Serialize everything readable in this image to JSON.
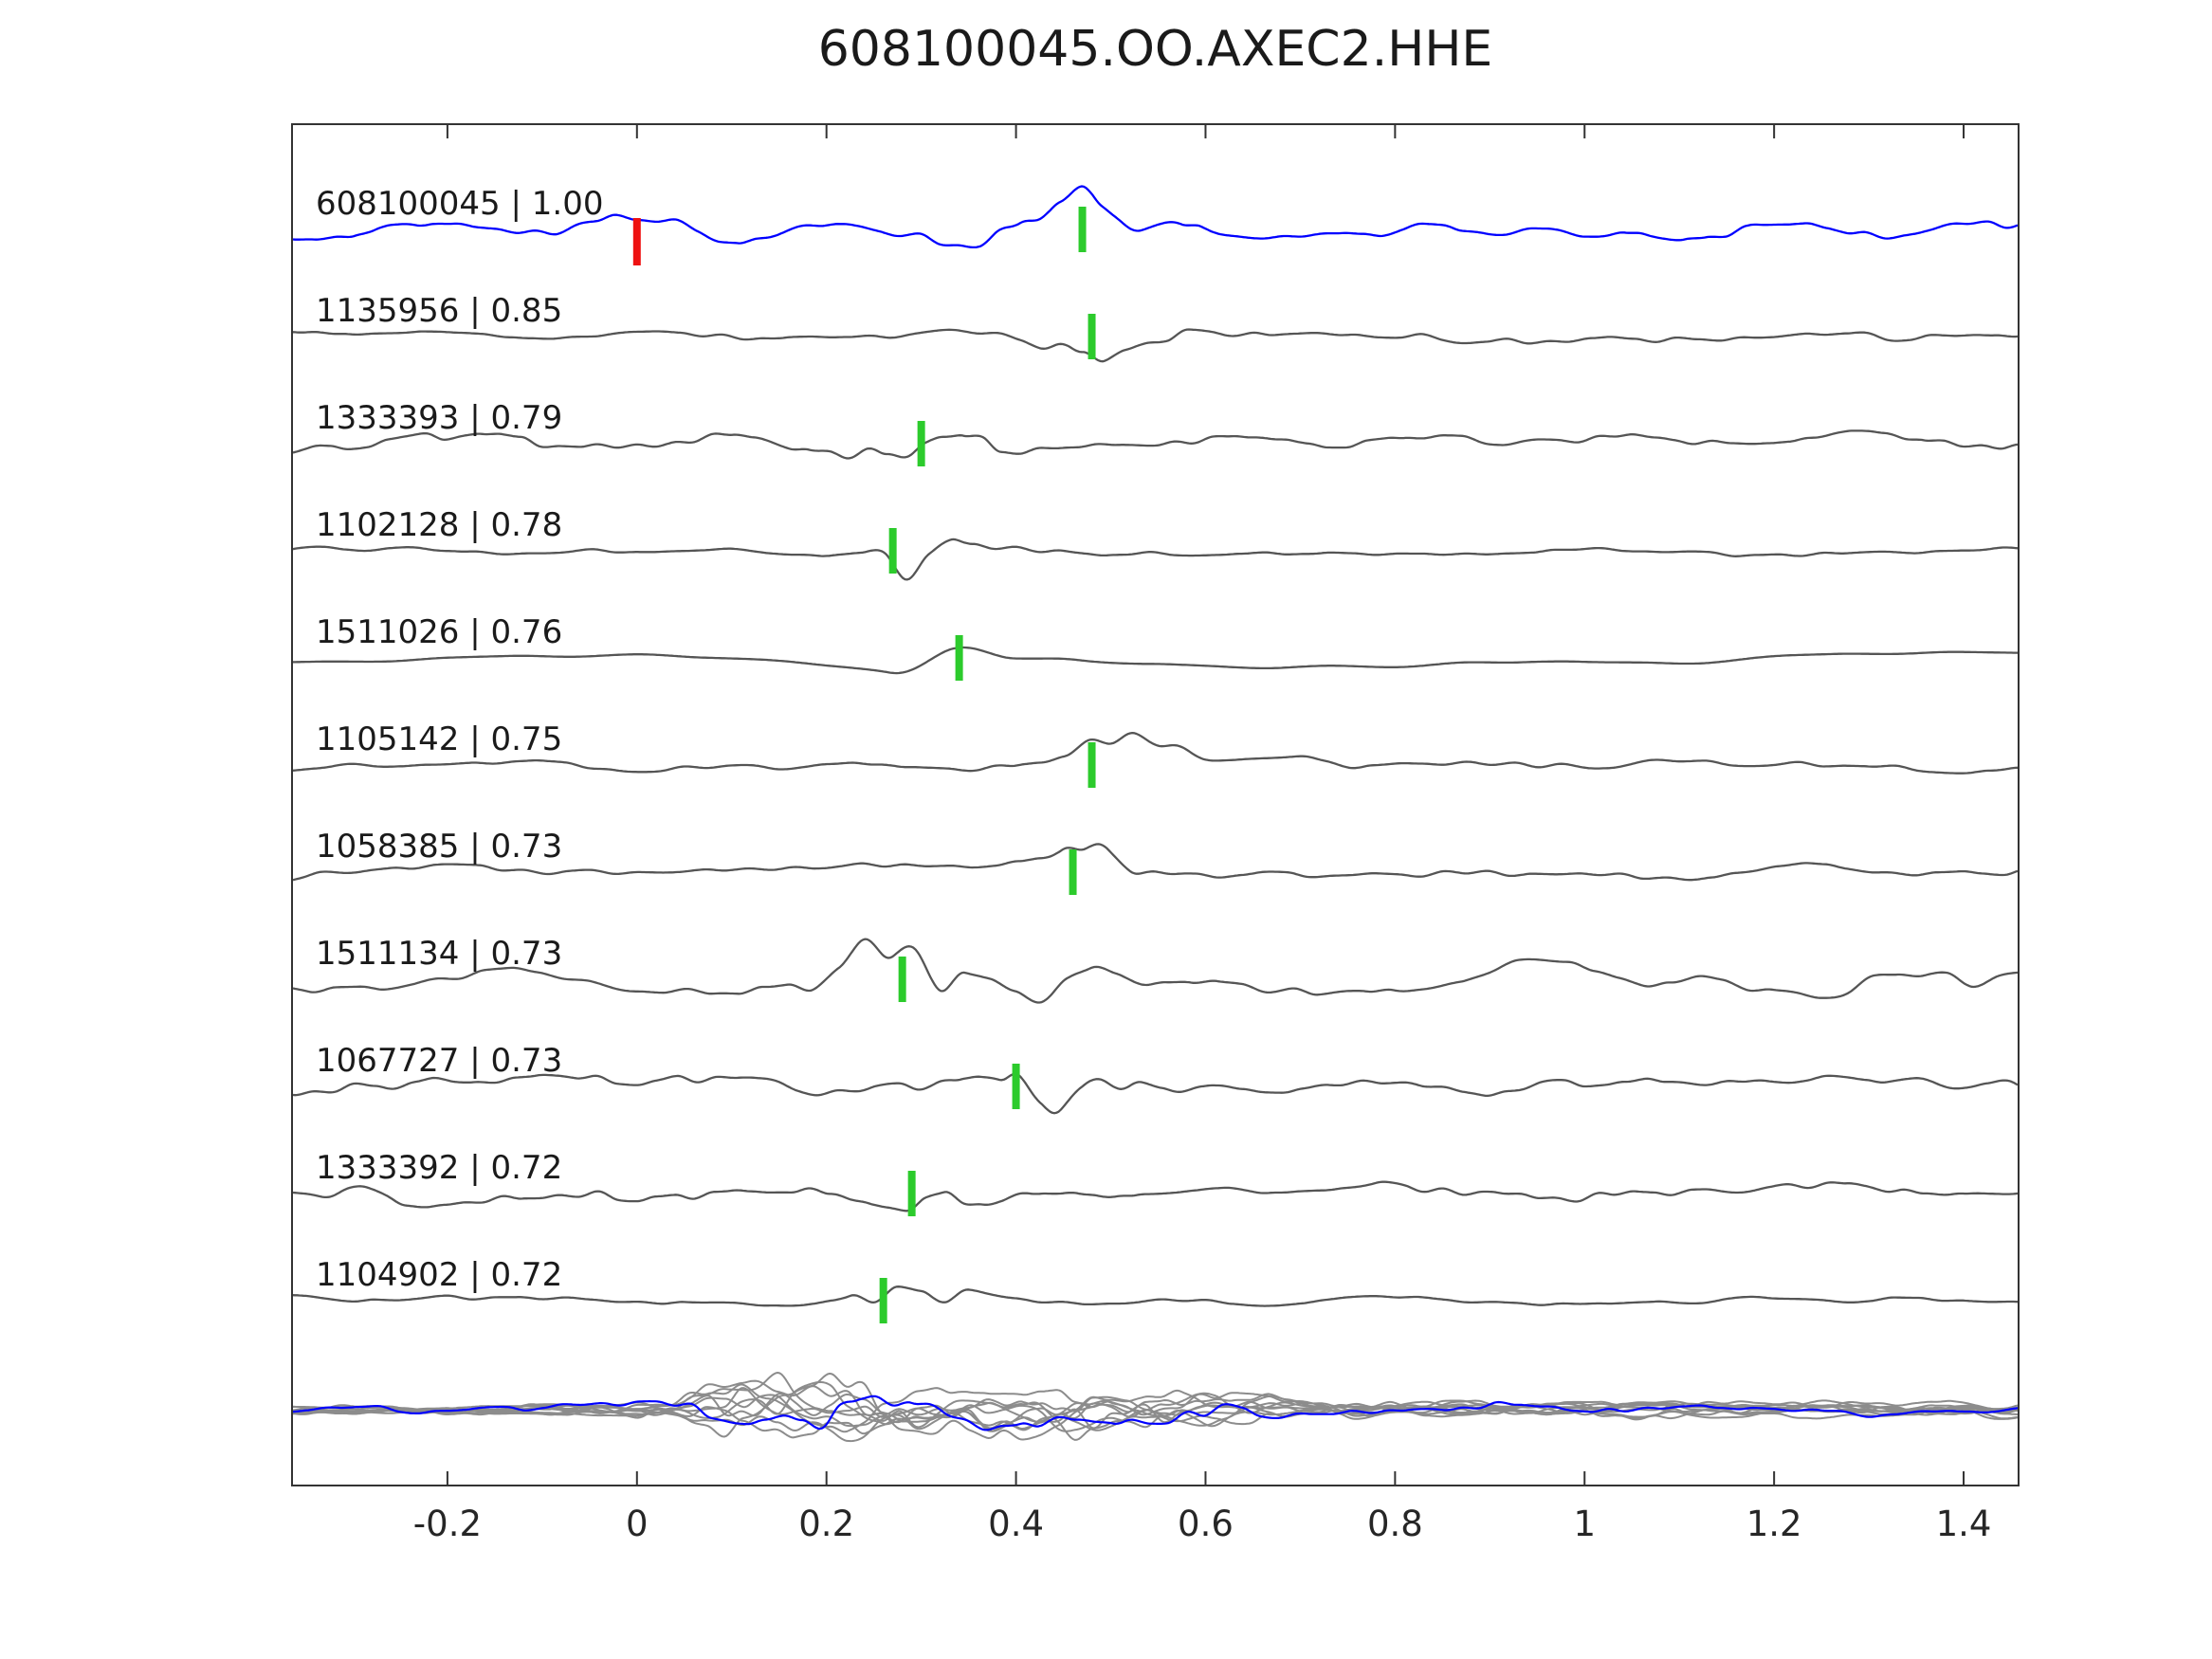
{
  "title": "608100045.OO.AXEC2.HHE",
  "chart_data": {
    "type": "line",
    "title": "608100045.OO.AXEC2.HHE",
    "xlabel": "",
    "ylabel": "",
    "xlim": [
      -0.36,
      1.46
    ],
    "x_tick_values": [
      -0.2,
      0,
      0.2,
      0.4,
      0.6,
      0.8,
      1,
      1.2,
      1.4
    ],
    "x_ticks": [
      "-0.2",
      "0",
      "0.2",
      "0.4",
      "0.6",
      "0.8",
      "1",
      "1.2",
      "1.4"
    ],
    "grid": false,
    "legend_position": "none",
    "colors": {
      "reference_trace": "#0000ff",
      "comparison_trace": "#555555",
      "overlay_traces": "#8c8c8c",
      "pick_marker": "#2ccb2c",
      "origin_marker": "#ee1111",
      "axis": "#333333",
      "text": "#1a1a1a",
      "background": "#ffffff"
    },
    "traces": [
      {
        "label": "608100045 | 1.00",
        "id": "608100045",
        "correlation": "1.00",
        "color": "blue",
        "pick_time": 0.47,
        "origin_marker_time": 0.0
      },
      {
        "label": "1135956 | 0.85",
        "id": "1135956",
        "correlation": "0.85",
        "color": "gray",
        "pick_time": 0.48
      },
      {
        "label": "1333393 | 0.79",
        "id": "1333393",
        "correlation": "0.79",
        "color": "gray",
        "pick_time": 0.3
      },
      {
        "label": "1102128 | 0.78",
        "id": "1102128",
        "correlation": "0.78",
        "color": "gray",
        "pick_time": 0.27
      },
      {
        "label": "1511026 | 0.76",
        "id": "1511026",
        "correlation": "0.76",
        "color": "gray",
        "pick_time": 0.34
      },
      {
        "label": "1105142 | 0.75",
        "id": "1105142",
        "correlation": "0.75",
        "color": "gray",
        "pick_time": 0.48
      },
      {
        "label": "1058385 | 0.73",
        "id": "1058385",
        "correlation": "0.73",
        "color": "gray",
        "pick_time": 0.46
      },
      {
        "label": "1511134 | 0.73",
        "id": "1511134",
        "correlation": "0.73",
        "color": "gray",
        "pick_time": 0.28
      },
      {
        "label": "1067727 | 0.73",
        "id": "1067727",
        "correlation": "0.73",
        "color": "gray",
        "pick_time": 0.4
      },
      {
        "label": "1333392 | 0.72",
        "id": "1333392",
        "correlation": "0.72",
        "color": "gray",
        "pick_time": 0.29
      },
      {
        "label": "1104902 | 0.72",
        "id": "1104902",
        "correlation": "0.72",
        "color": "gray",
        "pick_time": 0.26
      }
    ],
    "overlay_row": {
      "description": "All traces superimposed in gray with reference trace in blue"
    }
  }
}
